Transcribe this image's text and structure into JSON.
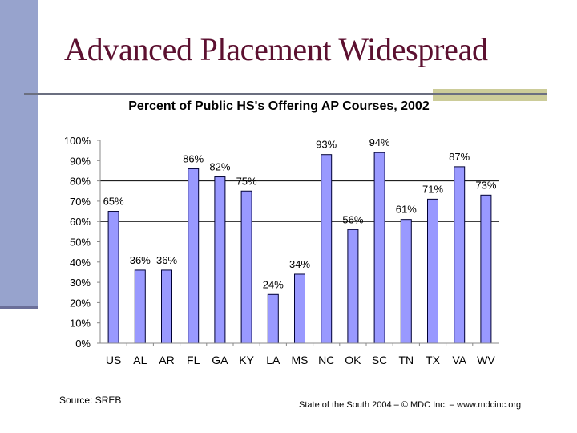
{
  "slide": {
    "title": "Advanced Placement Widespread",
    "source": "Source:  SREB",
    "credit": "State of the South 2004 – © MDC Inc. – www.mdcinc.org"
  },
  "colors": {
    "sidebar": "#97a3cd",
    "title": "#5c1030",
    "rule": "#6b6f80",
    "accent_bar": "#cccc99",
    "bar_fill": "#9999ff",
    "bar_outline": "#000033"
  },
  "chart_data": {
    "type": "bar",
    "title": "Percent of Public HS's Offering AP Courses, 2002",
    "xlabel": "",
    "ylabel": "",
    "categories": [
      "US",
      "AL",
      "AR",
      "FL",
      "GA",
      "KY",
      "LA",
      "MS",
      "NC",
      "OK",
      "SC",
      "TN",
      "TX",
      "VA",
      "WV"
    ],
    "values": [
      65,
      36,
      36,
      86,
      82,
      75,
      24,
      34,
      93,
      56,
      94,
      61,
      71,
      87,
      73
    ],
    "labels": [
      "65%",
      "36%",
      "36%",
      "86%",
      "82%",
      "75%",
      "24%",
      "34%",
      "93%",
      "56%",
      "94%",
      "61%",
      "71%",
      "87%",
      "73%"
    ],
    "ylim": [
      0,
      100
    ],
    "yticks": [
      "0%",
      "10%",
      "20%",
      "30%",
      "40%",
      "50%",
      "60%",
      "70%",
      "80%",
      "90%",
      "100%"
    ],
    "gridlines": [
      60,
      80
    ],
    "legend": null
  }
}
